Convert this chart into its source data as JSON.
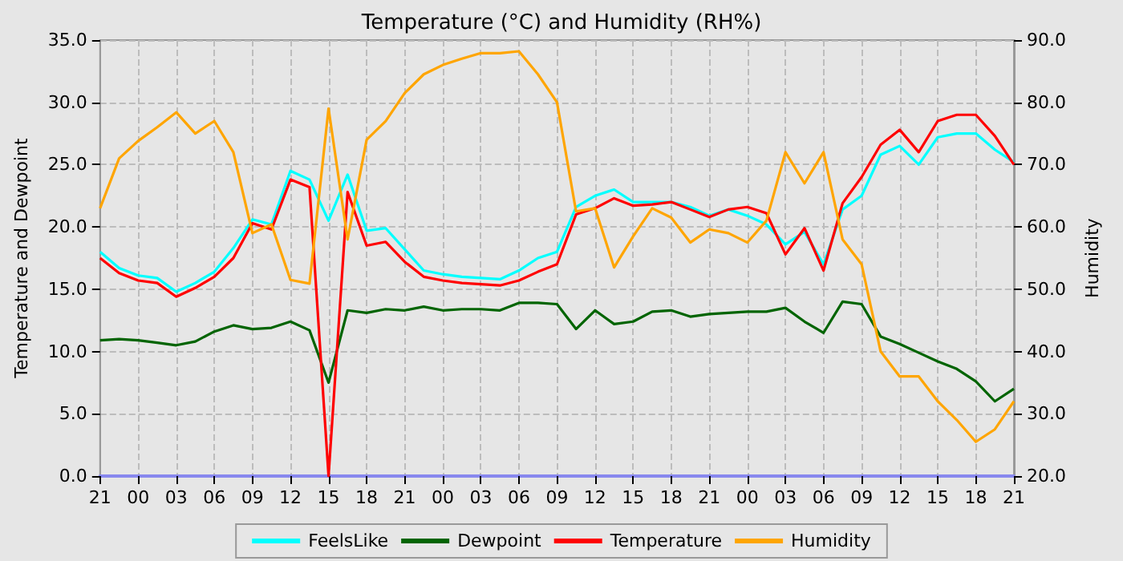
{
  "chart_data": {
    "type": "line",
    "title": "Temperature (°C) and Humidity (RH%)",
    "ylabel": "Temperature and Dewpoint",
    "y2label": "Humidity",
    "categories": [
      "21",
      null,
      "00",
      null,
      "03",
      null,
      "06",
      null,
      "09",
      null,
      "12",
      null,
      "15",
      null,
      "18",
      null,
      "21",
      null,
      "00",
      null,
      "03",
      null,
      "06",
      null,
      "09",
      null,
      "12",
      null,
      "15",
      null,
      "18",
      null,
      "21",
      null,
      "00",
      null,
      "03",
      null,
      "06",
      null,
      "09",
      null,
      "12",
      null,
      "15",
      null,
      "18",
      null,
      "21"
    ],
    "series": [
      {
        "name": "FeelsLike",
        "color": "#00ffff",
        "values": [
          18.0,
          16.7,
          16.1,
          15.9,
          14.8,
          15.5,
          16.4,
          18.3,
          20.6,
          20.2,
          24.5,
          23.8,
          20.5,
          24.2,
          19.7,
          19.9,
          18.2,
          16.5,
          16.2,
          16.0,
          15.9,
          15.8,
          16.5,
          17.5,
          18.0,
          21.6,
          22.5,
          23.0,
          22.0,
          22.0,
          22.0,
          21.6,
          20.9,
          21.4,
          20.9,
          20.2,
          18.6,
          19.6,
          17.0,
          21.4,
          22.5,
          25.8,
          26.5,
          25.0,
          27.2,
          27.5,
          27.5,
          26.2,
          25.2
        ]
      },
      {
        "name": "Dewpoint",
        "color": "#006400",
        "values": [
          10.9,
          11.0,
          10.9,
          10.7,
          10.5,
          10.8,
          11.6,
          12.1,
          11.8,
          11.9,
          12.4,
          11.7,
          7.5,
          13.3,
          13.1,
          13.4,
          13.3,
          13.6,
          13.3,
          13.4,
          13.4,
          13.3,
          13.9,
          13.9,
          13.8,
          11.8,
          13.3,
          12.2,
          12.4,
          13.2,
          13.3,
          12.8,
          13.0,
          13.1,
          13.2,
          13.2,
          13.5,
          12.4,
          11.5,
          14.0,
          13.8,
          11.2,
          10.6,
          9.9,
          9.2,
          8.6,
          7.6,
          6.0,
          7.0
        ]
      },
      {
        "name": "Temperature",
        "color": "#ff0000",
        "values": [
          17.5,
          16.3,
          15.7,
          15.5,
          14.4,
          15.1,
          16.0,
          17.5,
          20.3,
          19.8,
          23.8,
          23.2,
          0,
          22.8,
          18.5,
          18.8,
          17.2,
          16.0,
          15.7,
          15.5,
          15.4,
          15.3,
          15.7,
          16.4,
          17.0,
          21.0,
          21.5,
          22.3,
          21.7,
          21.8,
          22.0,
          21.4,
          20.8,
          21.4,
          21.6,
          21.1,
          17.8,
          19.9,
          16.5,
          21.9,
          24.0,
          26.6,
          27.8,
          26.0,
          28.5,
          29.0,
          29.0,
          27.3,
          25.0
        ]
      },
      {
        "name": "Humidity",
        "color": "#ffa500",
        "axis": "y2",
        "values": [
          63.0,
          71.0,
          73.8,
          76.0,
          78.4,
          75.0,
          77.0,
          72.0,
          59.0,
          60.4,
          51.5,
          50.9,
          79.0,
          58.0,
          74.0,
          77.0,
          81.5,
          84.5,
          86.0,
          87.0,
          87.9,
          87.9,
          88.2,
          84.5,
          80.0,
          62.5,
          63.0,
          53.5,
          58.5,
          63.0,
          61.5,
          57.5,
          59.6,
          59.0,
          57.5,
          61.0,
          72.0,
          67.0,
          72.0,
          58.0,
          54.0,
          40.0,
          36.0,
          36.0,
          32.0,
          29.0,
          25.5,
          27.5,
          32.0
        ]
      }
    ],
    "ylim": [
      0,
      35
    ],
    "yticks": [
      {
        "value": 0,
        "label": "0.0"
      },
      {
        "value": 5,
        "label": "5.0"
      },
      {
        "value": 10,
        "label": "10.0"
      },
      {
        "value": 15,
        "label": "15.0"
      },
      {
        "value": 20,
        "label": "20.0"
      },
      {
        "value": 25,
        "label": "25.0"
      },
      {
        "value": 30,
        "label": "30.0"
      },
      {
        "value": 35,
        "label": "35.0"
      }
    ],
    "y2lim": [
      20,
      90
    ],
    "y2ticks": [
      {
        "value": 20,
        "label": "20.0"
      },
      {
        "value": 30,
        "label": "30.0"
      },
      {
        "value": 40,
        "label": "40.0"
      },
      {
        "value": 50,
        "label": "50.0"
      },
      {
        "value": 60,
        "label": "60.0"
      },
      {
        "value": 70,
        "label": "70.0"
      },
      {
        "value": 80,
        "label": "80.0"
      },
      {
        "value": 90,
        "label": "90.0"
      }
    ],
    "grid": true,
    "legend": "bottom",
    "marker": "none",
    "line_style": "solid"
  }
}
